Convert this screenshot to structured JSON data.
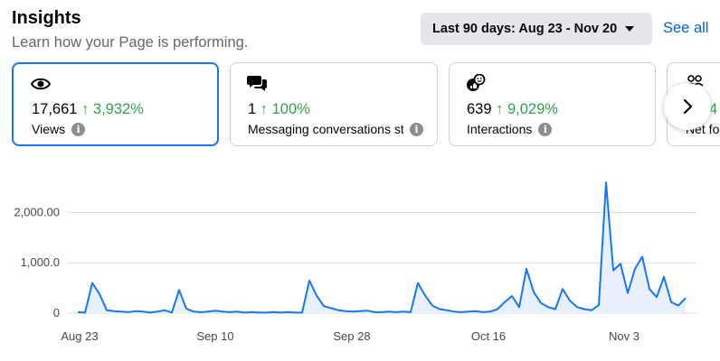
{
  "header": {
    "title": "Insights",
    "subtitle": "Learn how your Page is performing.",
    "range_label": "Last 90 days: Aug 23 - Nov 20",
    "see_all": "See all"
  },
  "cards": [
    {
      "icon": "eye-icon",
      "value": "17,661",
      "delta": "↑ 3,932%",
      "label": "Views",
      "active": true
    },
    {
      "icon": "chat-bubbles-icon",
      "value": "1",
      "delta": "↑ 100%",
      "label": "Messaging conversations star",
      "active": false
    },
    {
      "icon": "reactions-icon",
      "value": "639",
      "delta": "↑ 9,029%",
      "label": "Interactions",
      "active": false
    },
    {
      "icon": "people-icon",
      "value": "",
      "delta": "4",
      "label": "Net fol",
      "active": false
    }
  ],
  "colors": {
    "accent": "#1877f2",
    "positive": "#31a24c",
    "line": "#1877f2",
    "fill": "#e7f0fc"
  },
  "chart_data": {
    "type": "area",
    "x_ticks": [
      "Aug 23",
      "Sep 10",
      "Sep 28",
      "Oct 16",
      "Nov 3"
    ],
    "y_ticks": [
      "2,000.00",
      "1,000.0",
      "0"
    ],
    "ylim": [
      0,
      2600
    ],
    "series": [
      {
        "values": [
          20,
          10,
          600,
          380,
          60,
          40,
          30,
          20,
          40,
          30,
          10,
          30,
          60,
          10,
          460,
          90,
          30,
          20,
          30,
          50,
          30,
          20,
          30,
          10,
          20,
          10,
          10,
          20,
          10,
          20,
          10,
          10,
          650,
          350,
          140,
          100,
          60,
          40,
          30,
          40,
          50,
          20,
          20,
          30,
          20,
          30,
          20,
          600,
          350,
          150,
          80,
          60,
          30,
          20,
          30,
          40,
          20,
          30,
          80,
          220,
          340,
          120,
          880,
          420,
          200,
          120,
          80,
          480,
          250,
          120,
          80,
          60,
          160,
          2600,
          850,
          980,
          400,
          880,
          1120,
          480,
          320,
          720,
          220,
          150,
          300
        ]
      }
    ]
  }
}
